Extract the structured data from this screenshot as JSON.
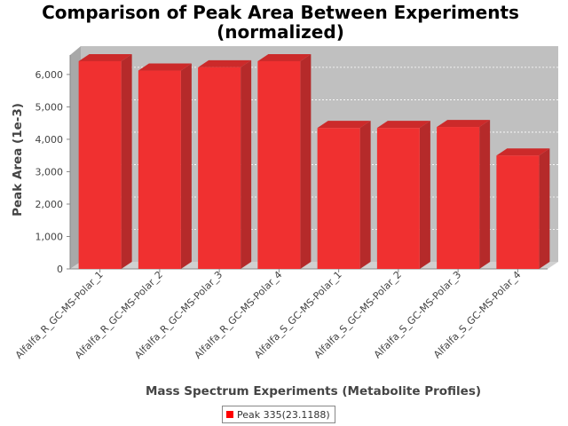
{
  "chart_data": {
    "type": "bar",
    "title": [
      "Comparison of Peak Area Between Experiments",
      "(normalized)"
    ],
    "xlabel": "Mass Spectrum Experiments (Metabolite Profiles)",
    "ylabel": "Peak Area (1e-3)",
    "ylim": [
      0,
      6600
    ],
    "yticks": [
      0,
      1000,
      2000,
      3000,
      4000,
      5000,
      6000
    ],
    "ytick_labels": [
      "0",
      "1,000",
      "2,000",
      "3,000",
      "4,000",
      "5,000",
      "6,000"
    ],
    "grid": true,
    "legend_position": "bottom-center",
    "categories": [
      "Alfalfa_R_GC-MS-Polar_1",
      "Alfalfa_R_GC-MS-Polar_2",
      "Alfalfa_R_GC-MS-Polar_3",
      "Alfalfa_R_GC-MS-Polar_4",
      "Alfalfa_S_GC-MS-Polar_1",
      "Alfalfa_S_GC-MS-Polar_2",
      "Alfalfa_S_GC-MS-Polar_3",
      "Alfalfa_S_GC-MS-Polar_4"
    ],
    "series": [
      {
        "name": "Peak 335(23.1188)",
        "color": "#ff0000",
        "values": [
          6410,
          6120,
          6220,
          6410,
          4350,
          4350,
          4380,
          3500
        ]
      }
    ]
  }
}
